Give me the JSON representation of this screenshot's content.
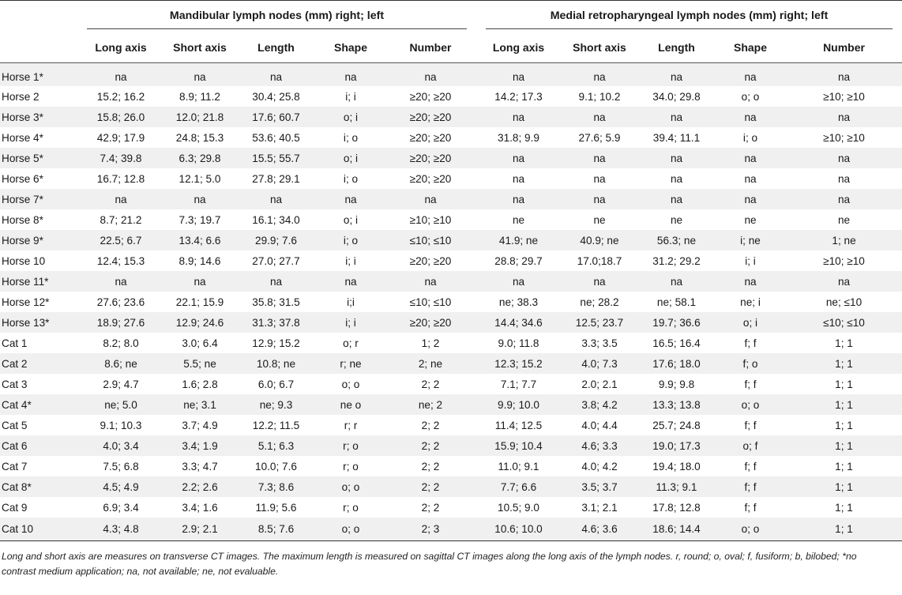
{
  "table": {
    "group_headers": {
      "mandibular": "Mandibular lymph nodes (mm) right; left",
      "retropharyngeal": "Medial retropharyngeal lymph nodes (mm) right; left"
    },
    "columns": [
      "",
      "Long axis",
      "Short axis",
      "Length",
      "Shape",
      "Number",
      "Long axis",
      "Short axis",
      "Length",
      "Shape",
      "Number"
    ],
    "rows": [
      [
        "Horse 1*",
        "na",
        "na",
        "na",
        "na",
        "na",
        "na",
        "na",
        "na",
        "na",
        "na"
      ],
      [
        "Horse 2",
        "15.2; 16.2",
        "8.9; 11.2",
        "30.4; 25.8",
        "i; i",
        "≥20; ≥20",
        "14.2; 17.3",
        "9.1; 10.2",
        "34.0; 29.8",
        "o; o",
        "≥10; ≥10"
      ],
      [
        "Horse 3*",
        "15.8; 26.0",
        "12.0; 21.8",
        "17.6; 60.7",
        "o; i",
        "≥20; ≥20",
        "na",
        "na",
        "na",
        "na",
        "na"
      ],
      [
        "Horse 4*",
        "42.9; 17.9",
        "24.8; 15.3",
        "53.6; 40.5",
        "i; o",
        "≥20; ≥20",
        "31.8; 9.9",
        "27.6; 5.9",
        "39.4; 11.1",
        "i; o",
        "≥10; ≥10"
      ],
      [
        "Horse 5*",
        "7.4; 39.8",
        "6.3; 29.8",
        "15.5; 55.7",
        "o; i",
        "≥20; ≥20",
        "na",
        "na",
        "na",
        "na",
        "na"
      ],
      [
        "Horse 6*",
        "16.7; 12.8",
        "12.1; 5.0",
        "27.8; 29.1",
        "i; o",
        "≥20; ≥20",
        "na",
        "na",
        "na",
        "na",
        "na"
      ],
      [
        "Horse 7*",
        "na",
        "na",
        "na",
        "na",
        "na",
        "na",
        "na",
        "na",
        "na",
        "na"
      ],
      [
        "Horse 8*",
        "8.7; 21.2",
        "7.3; 19.7",
        "16.1; 34.0",
        "o; i",
        "≥10; ≥10",
        "ne",
        "ne",
        "ne",
        "ne",
        "ne"
      ],
      [
        "Horse 9*",
        "22.5; 6.7",
        "13.4; 6.6",
        "29.9; 7.6",
        "i; o",
        "≤10; ≤10",
        "41.9; ne",
        "40.9; ne",
        "56.3; ne",
        "i; ne",
        "1; ne"
      ],
      [
        "Horse 10",
        "12.4; 15.3",
        "8.9; 14.6",
        "27.0; 27.7",
        "i; i",
        "≥20; ≥20",
        "28.8; 29.7",
        "17.0;18.7",
        "31.2; 29.2",
        "i; i",
        "≥10; ≥10"
      ],
      [
        "Horse 11*",
        "na",
        "na",
        "na",
        "na",
        "na",
        "na",
        "na",
        "na",
        "na",
        "na"
      ],
      [
        "Horse 12*",
        "27.6; 23.6",
        "22.1; 15.9",
        "35.8; 31.5",
        "i;i",
        "≤10; ≤10",
        "ne; 38.3",
        "ne; 28.2",
        "ne; 58.1",
        "ne; i",
        "ne; ≤10"
      ],
      [
        "Horse 13*",
        "18.9; 27.6",
        "12.9; 24.6",
        "31.3; 37.8",
        "i; i",
        "≥20; ≥20",
        "14.4; 34.6",
        "12.5; 23.7",
        "19.7; 36.6",
        "o; i",
        "≤10; ≤10"
      ],
      [
        "Cat 1",
        "8.2; 8.0",
        "3.0; 6.4",
        "12.9; 15.2",
        "o; r",
        "1; 2",
        "9.0; 11.8",
        "3.3; 3.5",
        "16.5; 16.4",
        "f; f",
        "1; 1"
      ],
      [
        "Cat 2",
        "8.6; ne",
        "5.5; ne",
        "10.8; ne",
        "r; ne",
        "2; ne",
        "12.3; 15.2",
        "4.0; 7.3",
        "17.6; 18.0",
        "f; o",
        "1; 1"
      ],
      [
        "Cat 3",
        "2.9; 4.7",
        "1.6; 2.8",
        "6.0; 6.7",
        "o; o",
        "2; 2",
        "7.1; 7.7",
        "2.0; 2.1",
        "9.9; 9.8",
        "f; f",
        "1; 1"
      ],
      [
        "Cat 4*",
        "ne; 5.0",
        "ne; 3.1",
        "ne; 9.3",
        "ne o",
        "ne; 2",
        "9.9; 10.0",
        "3.8; 4.2",
        "13.3; 13.8",
        "o; o",
        "1; 1"
      ],
      [
        "Cat 5",
        "9.1; 10.3",
        "3.7; 4.9",
        "12.2; 11.5",
        "r; r",
        "2; 2",
        "11.4; 12.5",
        "4.0; 4.4",
        "25.7; 24.8",
        "f; f",
        "1; 1"
      ],
      [
        "Cat 6",
        "4.0; 3.4",
        "3.4; 1.9",
        "5.1; 6.3",
        "r; o",
        "2; 2",
        "15.9; 10.4",
        "4.6; 3.3",
        "19.0; 17.3",
        "o; f",
        "1; 1"
      ],
      [
        "Cat 7",
        "7.5; 6.8",
        "3.3; 4.7",
        "10.0; 7.6",
        "r; o",
        "2; 2",
        "11.0; 9.1",
        "4.0; 4.2",
        "19.4; 18.0",
        "f; f",
        "1; 1"
      ],
      [
        "Cat 8*",
        "4.5; 4.9",
        "2.2; 2.6",
        "7.3; 8.6",
        "o; o",
        "2; 2",
        "7.7; 6.6",
        "3.5; 3.7",
        "11.3; 9.1",
        "f; f",
        "1; 1"
      ],
      [
        "Cat 9",
        "6.9; 3.4",
        "3.4; 1.6",
        "11.9; 5.6",
        "r; o",
        "2; 2",
        "10.5; 9.0",
        "3.1; 2.1",
        "17.8; 12.8",
        "f; f",
        "1; 1"
      ],
      [
        "Cat 10",
        "4.3; 4.8",
        "2.9; 2.1",
        "8.5; 7.6",
        "o; o",
        "2; 3",
        "10.6; 10.0",
        "4.6; 3.6",
        "18.6; 14.4",
        "o; o",
        "1; 1"
      ]
    ],
    "caption": "Long and short axis are measures on transverse CT images. The maximum length is measured on sagittal CT images along the long axis of the lymph nodes. r, round; o, oval; f, fusiform; b, bilobed; *no contrast medium application; na, not available; ne, not evaluable."
  }
}
